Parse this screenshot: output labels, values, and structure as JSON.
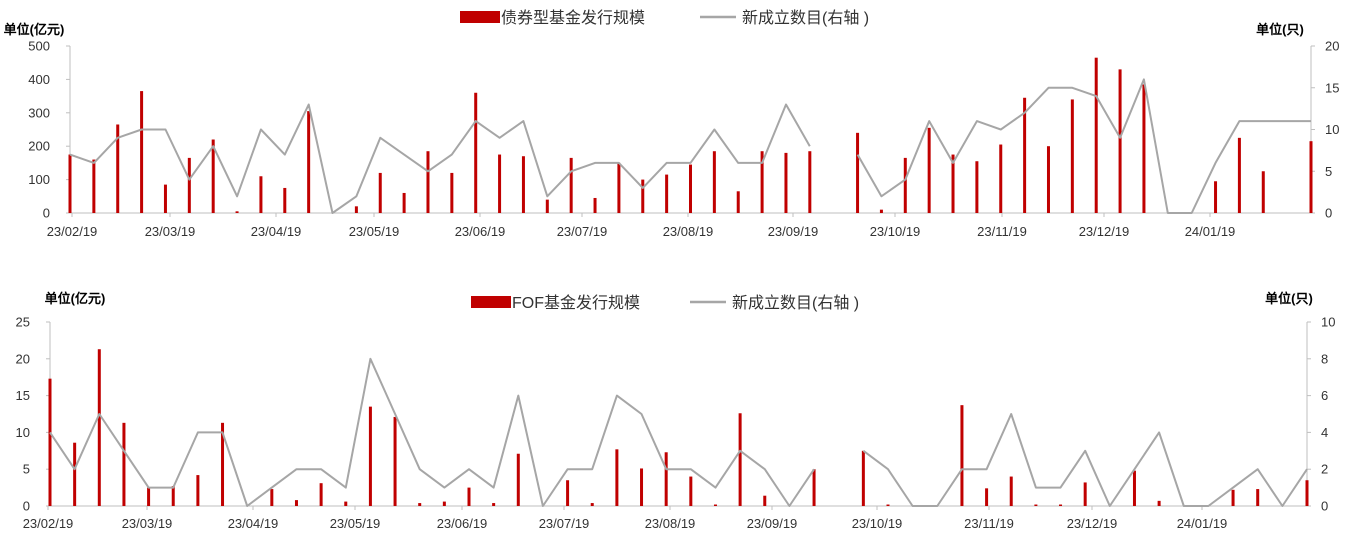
{
  "colors": {
    "bar": "#c00000",
    "line": "#a6a6a6",
    "axis": "#bfbfbf",
    "text": "#333333"
  },
  "chart_data": [
    {
      "type": "bar+line",
      "legend": {
        "bar": "债券型基金发行规模",
        "line": "新成立数目(右轴 )",
        "placement": "top-center"
      },
      "left_unit": "单位(亿元)",
      "right_unit": "单位(只)",
      "ylim": [
        0,
        500
      ],
      "yticks": [
        "0",
        "100",
        "200",
        "300",
        "400",
        "500"
      ],
      "y2lim": [
        0,
        20
      ],
      "y2ticks": [
        "0",
        "5",
        "10",
        "15",
        "20"
      ],
      "xtick_labels": [
        "23/02/19",
        "23/03/19",
        "23/04/19",
        "23/05/19",
        "23/06/19",
        "23/07/19",
        "23/08/19",
        "23/09/19",
        "23/10/19",
        "23/11/19",
        "23/12/19",
        "24/01/19"
      ],
      "bar_values": [
        175,
        160,
        265,
        365,
        85,
        165,
        220,
        5,
        110,
        75,
        305,
        0,
        20,
        120,
        60,
        185,
        120,
        360,
        175,
        170,
        40,
        165,
        45,
        150,
        100,
        115,
        145,
        185,
        65,
        185,
        180,
        185,
        0,
        240,
        10,
        165,
        255,
        175,
        155,
        205,
        345,
        200,
        340,
        465,
        430,
        385,
        0,
        0,
        95,
        225,
        125,
        0,
        215
      ],
      "line_values": [
        7,
        6,
        9,
        10,
        10,
        4,
        8,
        2,
        10,
        7,
        13,
        0,
        2,
        9,
        7,
        5,
        7,
        11,
        9,
        11,
        2,
        5,
        6,
        6,
        3,
        6,
        6,
        10,
        6,
        6,
        13,
        8,
        null,
        7,
        2,
        4,
        11,
        6,
        11,
        10,
        12,
        15,
        15,
        14,
        9,
        16,
        0,
        0,
        6,
        11,
        11,
        11,
        11
      ]
    },
    {
      "type": "bar+line",
      "legend": {
        "bar": "FOF基金发行规模",
        "line": "新成立数目(右轴 )",
        "placement": "top-center"
      },
      "left_unit": "单位(亿元)",
      "right_unit": "单位(只)",
      "ylim": [
        0,
        25
      ],
      "yticks": [
        "0",
        "5",
        "10",
        "15",
        "20",
        "25"
      ],
      "y2lim": [
        0,
        10
      ],
      "y2ticks": [
        "0",
        "2",
        "4",
        "6",
        "8",
        "10"
      ],
      "xtick_labels": [
        "23/02/19",
        "23/03/19",
        "23/04/19",
        "23/05/19",
        "23/06/19",
        "23/07/19",
        "23/08/19",
        "23/09/19",
        "23/10/19",
        "23/11/19",
        "23/12/19",
        "24/01/19"
      ],
      "bar_values": [
        17.3,
        8.6,
        21.3,
        11.3,
        2.5,
        2.7,
        4.2,
        11.3,
        0,
        2.3,
        0.8,
        3.1,
        0.6,
        13.5,
        12.1,
        0.4,
        0.6,
        2.5,
        0.4,
        7.1,
        0,
        3.5,
        0.4,
        7.7,
        5.1,
        7.3,
        4.0,
        0.2,
        12.6,
        1.4,
        0,
        5.0,
        0,
        7.5,
        0.2,
        0,
        0,
        13.7,
        2.4,
        4.0,
        0.2,
        0.2,
        3.2,
        0,
        4.8,
        0.7,
        0,
        0,
        2.2,
        2.3,
        0,
        3.5
      ],
      "line_values": [
        4,
        2,
        5,
        3,
        1,
        1,
        4,
        4,
        0,
        1,
        2,
        2,
        1,
        8,
        5,
        2,
        1,
        2,
        1,
        6,
        0,
        2,
        2,
        6,
        5,
        2,
        2,
        1,
        3,
        2,
        0,
        2,
        null,
        3,
        2,
        0,
        0,
        2,
        2,
        5,
        1,
        1,
        3,
        0,
        2,
        4,
        0,
        0,
        1,
        2,
        0,
        2
      ]
    }
  ]
}
